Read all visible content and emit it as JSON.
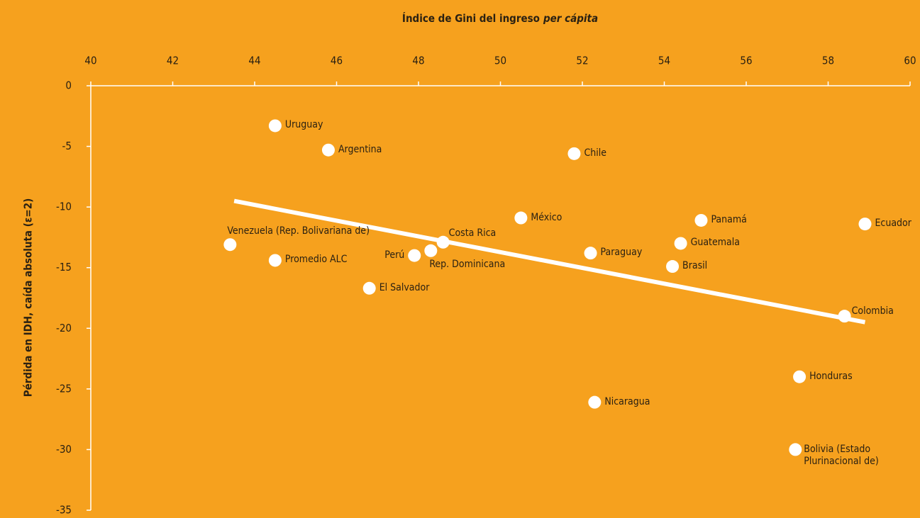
{
  "chart_data": {
    "type": "scatter",
    "x_label": {
      "text": "Índice de Gini del ingreso",
      "emphasis": "per cápita"
    },
    "y_label": "Pérdida en IDH, caída absoluta (ε=2)",
    "labels": [
      "Uruguay",
      "Argentina",
      "Chile",
      "México",
      "Panamá",
      "Ecuador",
      "Venezuela (Rep. Bolivariana de)",
      "Costa Rica",
      "Rep. Dominicana",
      "Perú",
      "Promedio ALC",
      "Paraguay",
      "Guatemala",
      "Brasil",
      "El Salvador",
      "Colombia",
      "Honduras",
      "Nicaragua",
      "Bolivia (Estado Plurinacional de)"
    ],
    "x": [
      44.5,
      45.8,
      51.8,
      50.5,
      54.9,
      58.9,
      43.4,
      48.6,
      48.3,
      47.9,
      44.5,
      52.2,
      54.4,
      54.2,
      46.8,
      58.4,
      57.3,
      52.3,
      57.2
    ],
    "values": [
      -3.3,
      -5.3,
      -5.6,
      -10.9,
      -11.1,
      -11.4,
      -13.1,
      -12.9,
      -13.6,
      -14.0,
      -14.4,
      -13.8,
      -13.0,
      -14.9,
      -16.7,
      -19.0,
      -24.0,
      -26.1,
      -30.0
    ],
    "color": "#ffffff",
    "trendline": {
      "x": [
        43.5,
        58.9
      ],
      "y": [
        -9.5,
        -19.5
      ],
      "color": "#ffffff"
    },
    "xlim": [
      40,
      60
    ],
    "xticks": [
      40,
      42,
      44,
      46,
      48,
      50,
      52,
      54,
      56,
      58,
      60
    ],
    "ylim": [
      -35,
      0
    ],
    "yticks": [
      0,
      -5,
      -10,
      -15,
      -20,
      -25,
      -30,
      -35
    ]
  }
}
